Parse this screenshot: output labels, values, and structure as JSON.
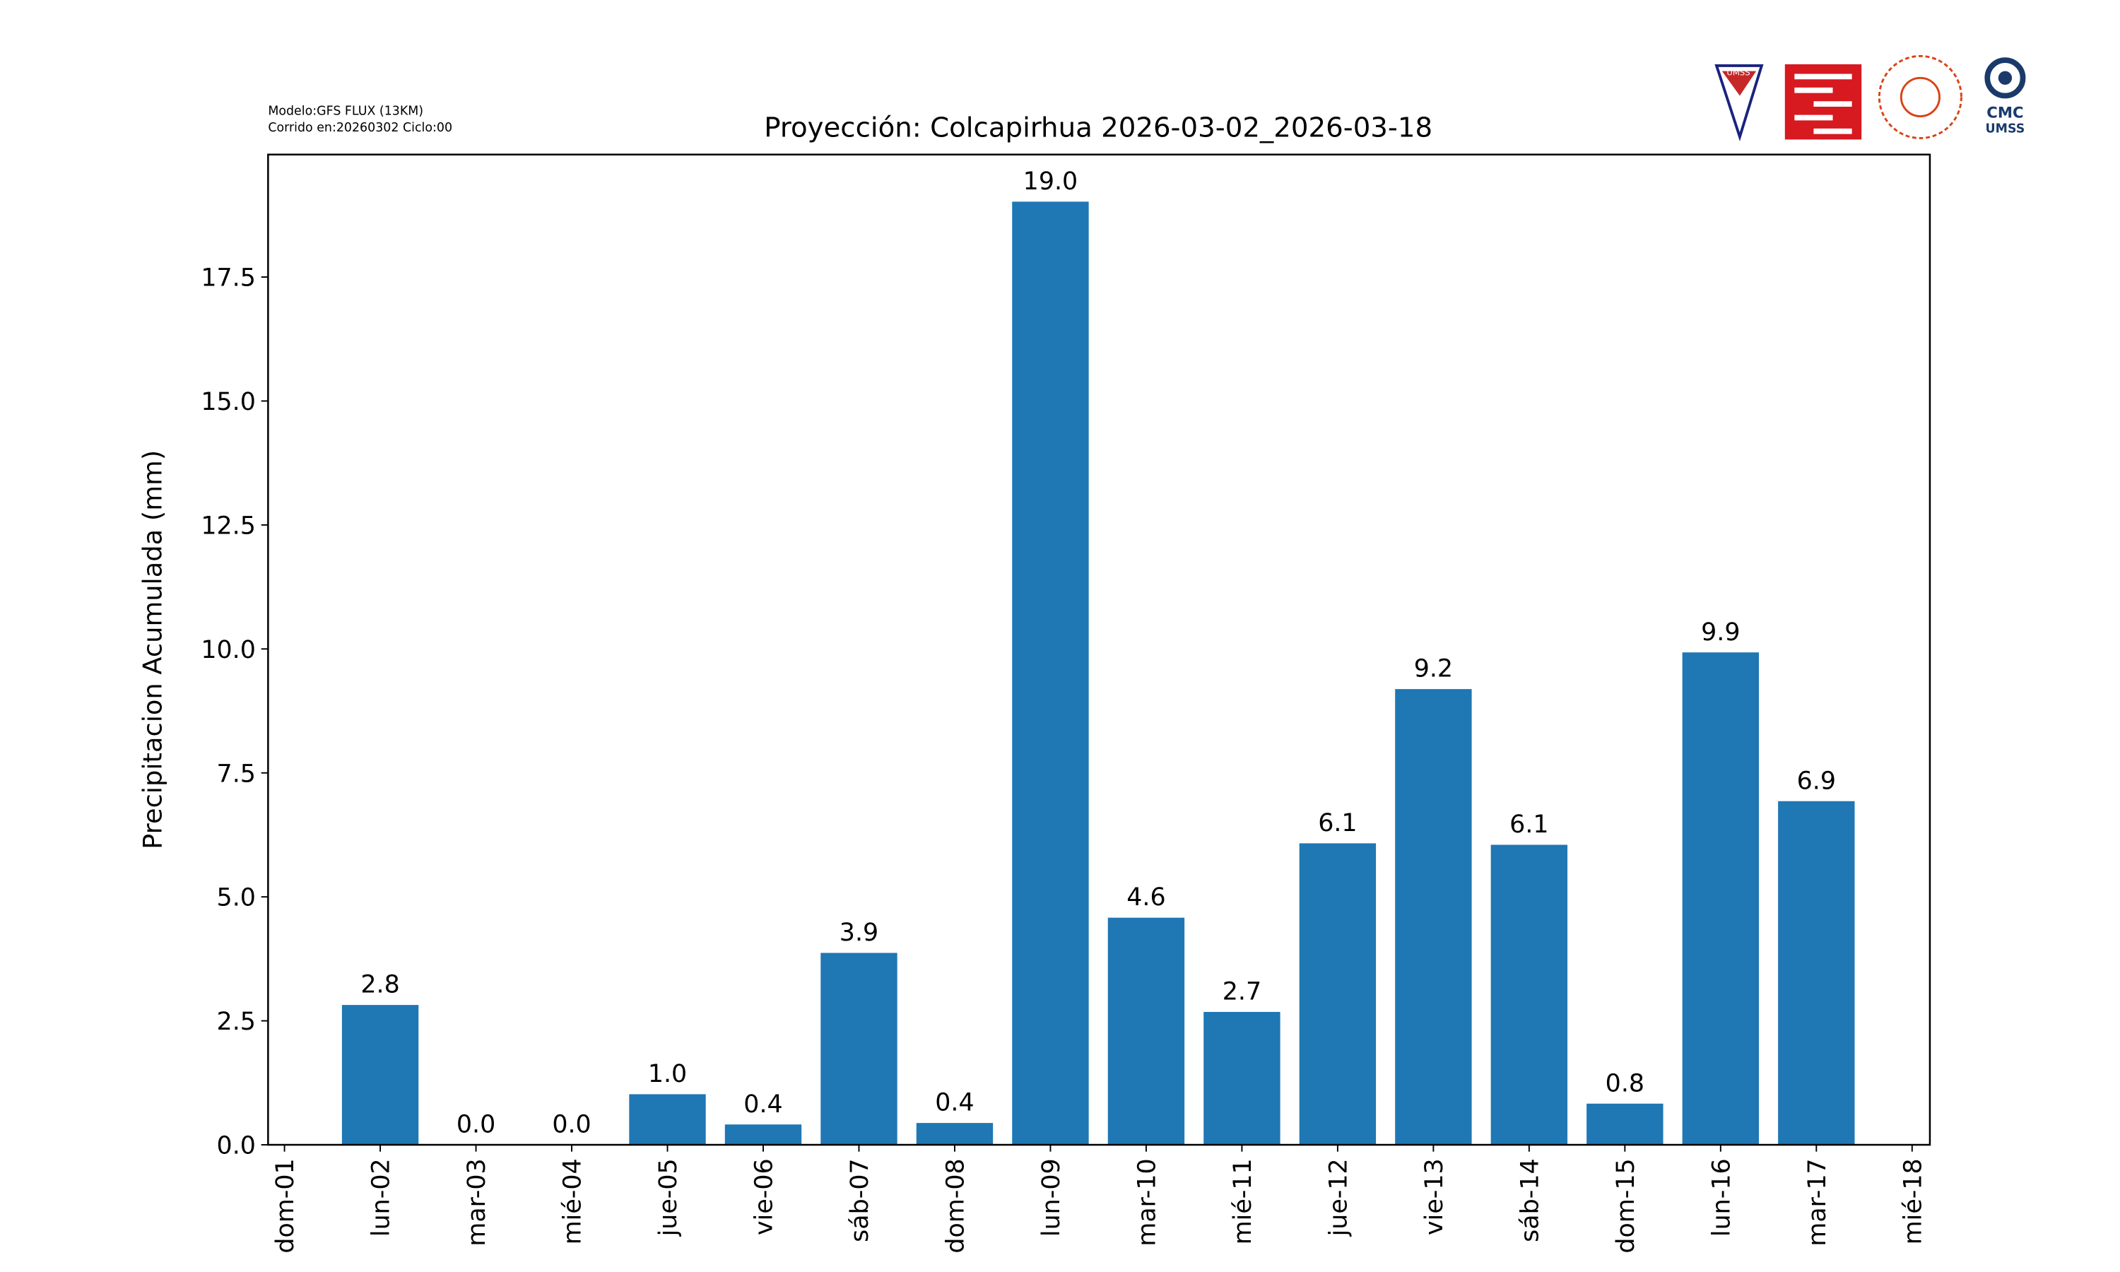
{
  "chart_data": {
    "type": "bar",
    "title": "Proyección: Colcapirhua  2026-03-02_2026-03-18",
    "model_note": "Modelo:GFS FLUX (13KM)",
    "run_note": "Corrido en:20260302 Ciclo:00",
    "y_label": "Precipitacion Acumulada (mm)",
    "categories": [
      "dom-01",
      "lun-02",
      "mar-03",
      "mié-04",
      "jue-05",
      "vie-06",
      "sáb-07",
      "dom-08",
      "lun-09",
      "mar-10",
      "mié-11",
      "jue-12",
      "vie-13",
      "sáb-14",
      "dom-15",
      "lun-16",
      "mar-17",
      "mié-18"
    ],
    "values": [
      null,
      2.82,
      0,
      0,
      1.02,
      0.41,
      3.87,
      0.44,
      19.02,
      4.58,
      2.68,
      6.08,
      9.19,
      6.05,
      0.83,
      9.93,
      6.93,
      null
    ],
    "value_labels": [
      null,
      "2.8",
      "0.0",
      "0.0",
      "1.0",
      "0.4",
      "3.9",
      "0.4",
      "19.0",
      "4.6",
      "2.7",
      "6.1",
      "9.2",
      "6.1",
      "0.8",
      "9.9",
      "6.9",
      null
    ],
    "color": "#1f77b4",
    "ylim": [
      0,
      19.97
    ],
    "yticks": [
      {
        "value": 0,
        "label": "0.0"
      },
      2.5,
      {
        "value": 5,
        "label": "5.0"
      },
      7.5,
      {
        "value": 10,
        "label": "10.0"
      },
      12.5,
      {
        "value": 15,
        "label": "15.0"
      },
      17.5
    ],
    "grid": false,
    "logos": {
      "umss": "UMSS",
      "cmc": "CMC",
      "cmc_sub": "UMSS"
    }
  }
}
